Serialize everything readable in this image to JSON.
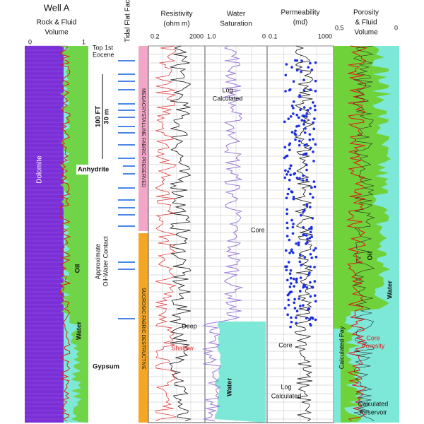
{
  "header": {
    "well": "Well A"
  },
  "tracks": [
    {
      "title": "Rock & Fluid",
      "title2": "Volume",
      "scale": [
        "0",
        "1"
      ]
    },
    {
      "title": "Tidal Flat Facies"
    },
    {
      "title": "Resistivity",
      "title2": "(ohm m)",
      "scale": [
        "0.2",
        "2000"
      ]
    },
    {
      "title": "Water",
      "title2": "Saturation",
      "scale": [
        "1.0",
        "0"
      ]
    },
    {
      "title": "Permeability",
      "title2": "(md)",
      "scale": [
        "0.1",
        "1000"
      ]
    },
    {
      "title": "Porosity",
      "title2": "& Fluid",
      "title3": "Volume",
      "scale": [
        "0.5",
        "0"
      ]
    }
  ],
  "annotations": {
    "top": "Top 1st",
    "top2": "Eocene",
    "dolomite": "Dolomite",
    "anhydrite": "Anhydrite",
    "thickness": "100 FT",
    "thickness2": "30 m",
    "owc": "Approximate",
    "owc2": "Oil-Water Contact",
    "oil": "Oil",
    "water": "Water",
    "gypsum": "Gypsum",
    "facies_upper": "MEGACRYSTALLINE FABRIC PRESERVED",
    "facies_lower": "SUCROSIC FABRIC DESTRUCTIVE",
    "sw_log": "Log",
    "sw_log2": "Calculated",
    "sw_core": "Core",
    "deep": "Deep",
    "shallow": "Shallow",
    "sw_water": "Water",
    "k_core": "Core",
    "k_log": "Log",
    "k_log2": "Calculated",
    "phi_oil": "Oil",
    "phi_water": "Water",
    "core_porosity": "Core",
    "core_porosity2": "Porosity",
    "calc_pay": "Calculated Pay",
    "calc_res": "Calculated",
    "calc_res2": "Reservoir"
  }
}
